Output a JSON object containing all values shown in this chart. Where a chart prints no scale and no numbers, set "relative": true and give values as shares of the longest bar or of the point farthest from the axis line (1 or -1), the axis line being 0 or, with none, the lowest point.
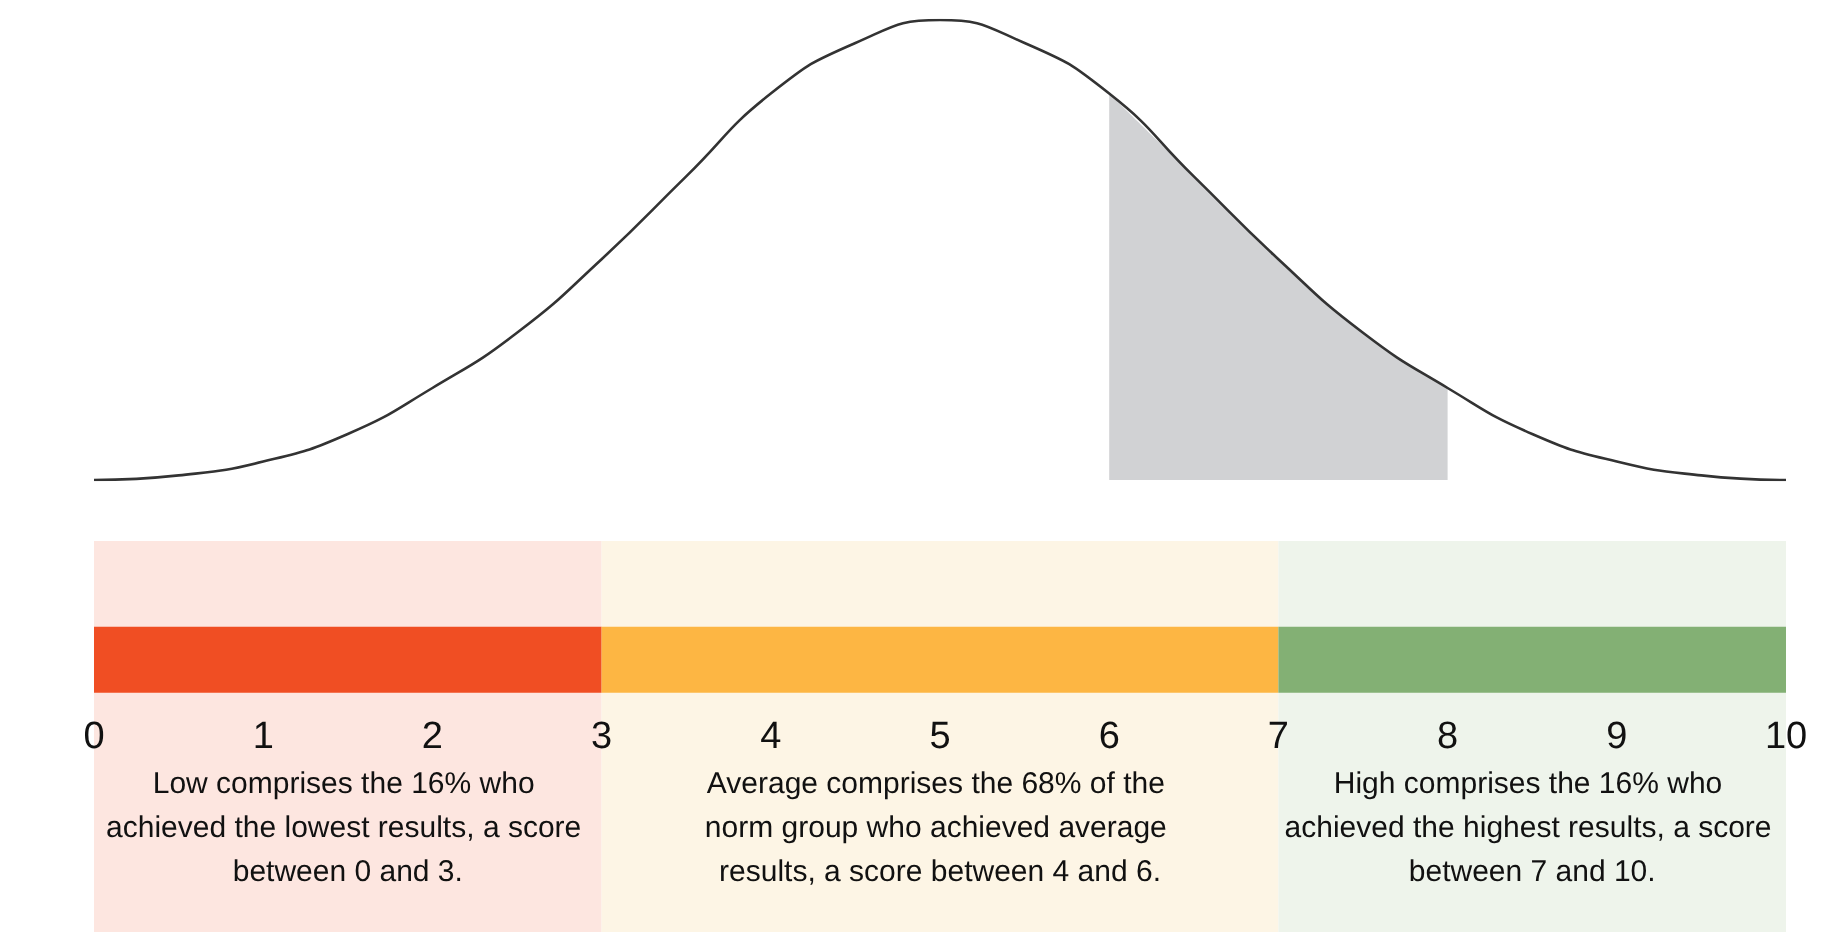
{
  "chart_data": [
    {
      "type": "line",
      "relative": true,
      "series": [
        {
          "type": "area",
          "color": "#d1d2d4",
          "x": [
            6,
            6.5,
            7,
            7.5,
            8
          ],
          "values": [
            0.84,
            0.66,
            0.48,
            0.32,
            0.2
          ]
        },
        {
          "color": "#333333",
          "x": [
            0,
            0.5,
            1,
            1.5,
            2,
            2.5,
            3,
            3.5,
            4,
            4.5,
            5,
            5.5,
            6,
            6.5,
            7,
            7.5,
            8,
            8.5,
            9,
            9.5,
            10
          ],
          "values": [
            0,
            0.01,
            0.04,
            0.1,
            0.2,
            0.32,
            0.48,
            0.66,
            0.84,
            0.95,
            1,
            0.95,
            0.84,
            0.66,
            0.48,
            0.32,
            0.2,
            0.1,
            0.04,
            0.01,
            0
          ]
        }
      ],
      "marker": "none",
      "xlim": [
        0,
        10
      ],
      "tick_labels": false,
      "grid": false
    },
    {
      "type": "bar",
      "orientation": "horizontal",
      "stacked": true,
      "categories": [
        null
      ],
      "series": [
        {
          "color": "#f04e23",
          "values": [
            3
          ]
        },
        {
          "color": "#fdb643",
          "values": [
            4
          ]
        },
        {
          "color": "#83b074",
          "values": [
            3
          ]
        }
      ],
      "xlim": [
        0,
        10
      ],
      "xticks": [
        0,
        1,
        2,
        3,
        4,
        5,
        6,
        7,
        8,
        9,
        10
      ],
      "tick_labels": "x",
      "bands": [
        {
          "axis": "x",
          "from": 0,
          "to": 3,
          "color": "#fde6e0",
          "label": "Low comprises the 16% who achieved the lowest results, a score between 0 and 3."
        },
        {
          "axis": "x",
          "from": 3,
          "to": 7,
          "color": "#fdf5e5",
          "label": "Average comprises the 68% of the norm group who achieved average results, a score between 4 and 6."
        },
        {
          "axis": "x",
          "from": 7,
          "to": 10,
          "color": "#eef4eb",
          "label": "High comprises the 16% who achieved the highest results, a score between 7 and 10."
        }
      ],
      "grid": false
    }
  ]
}
